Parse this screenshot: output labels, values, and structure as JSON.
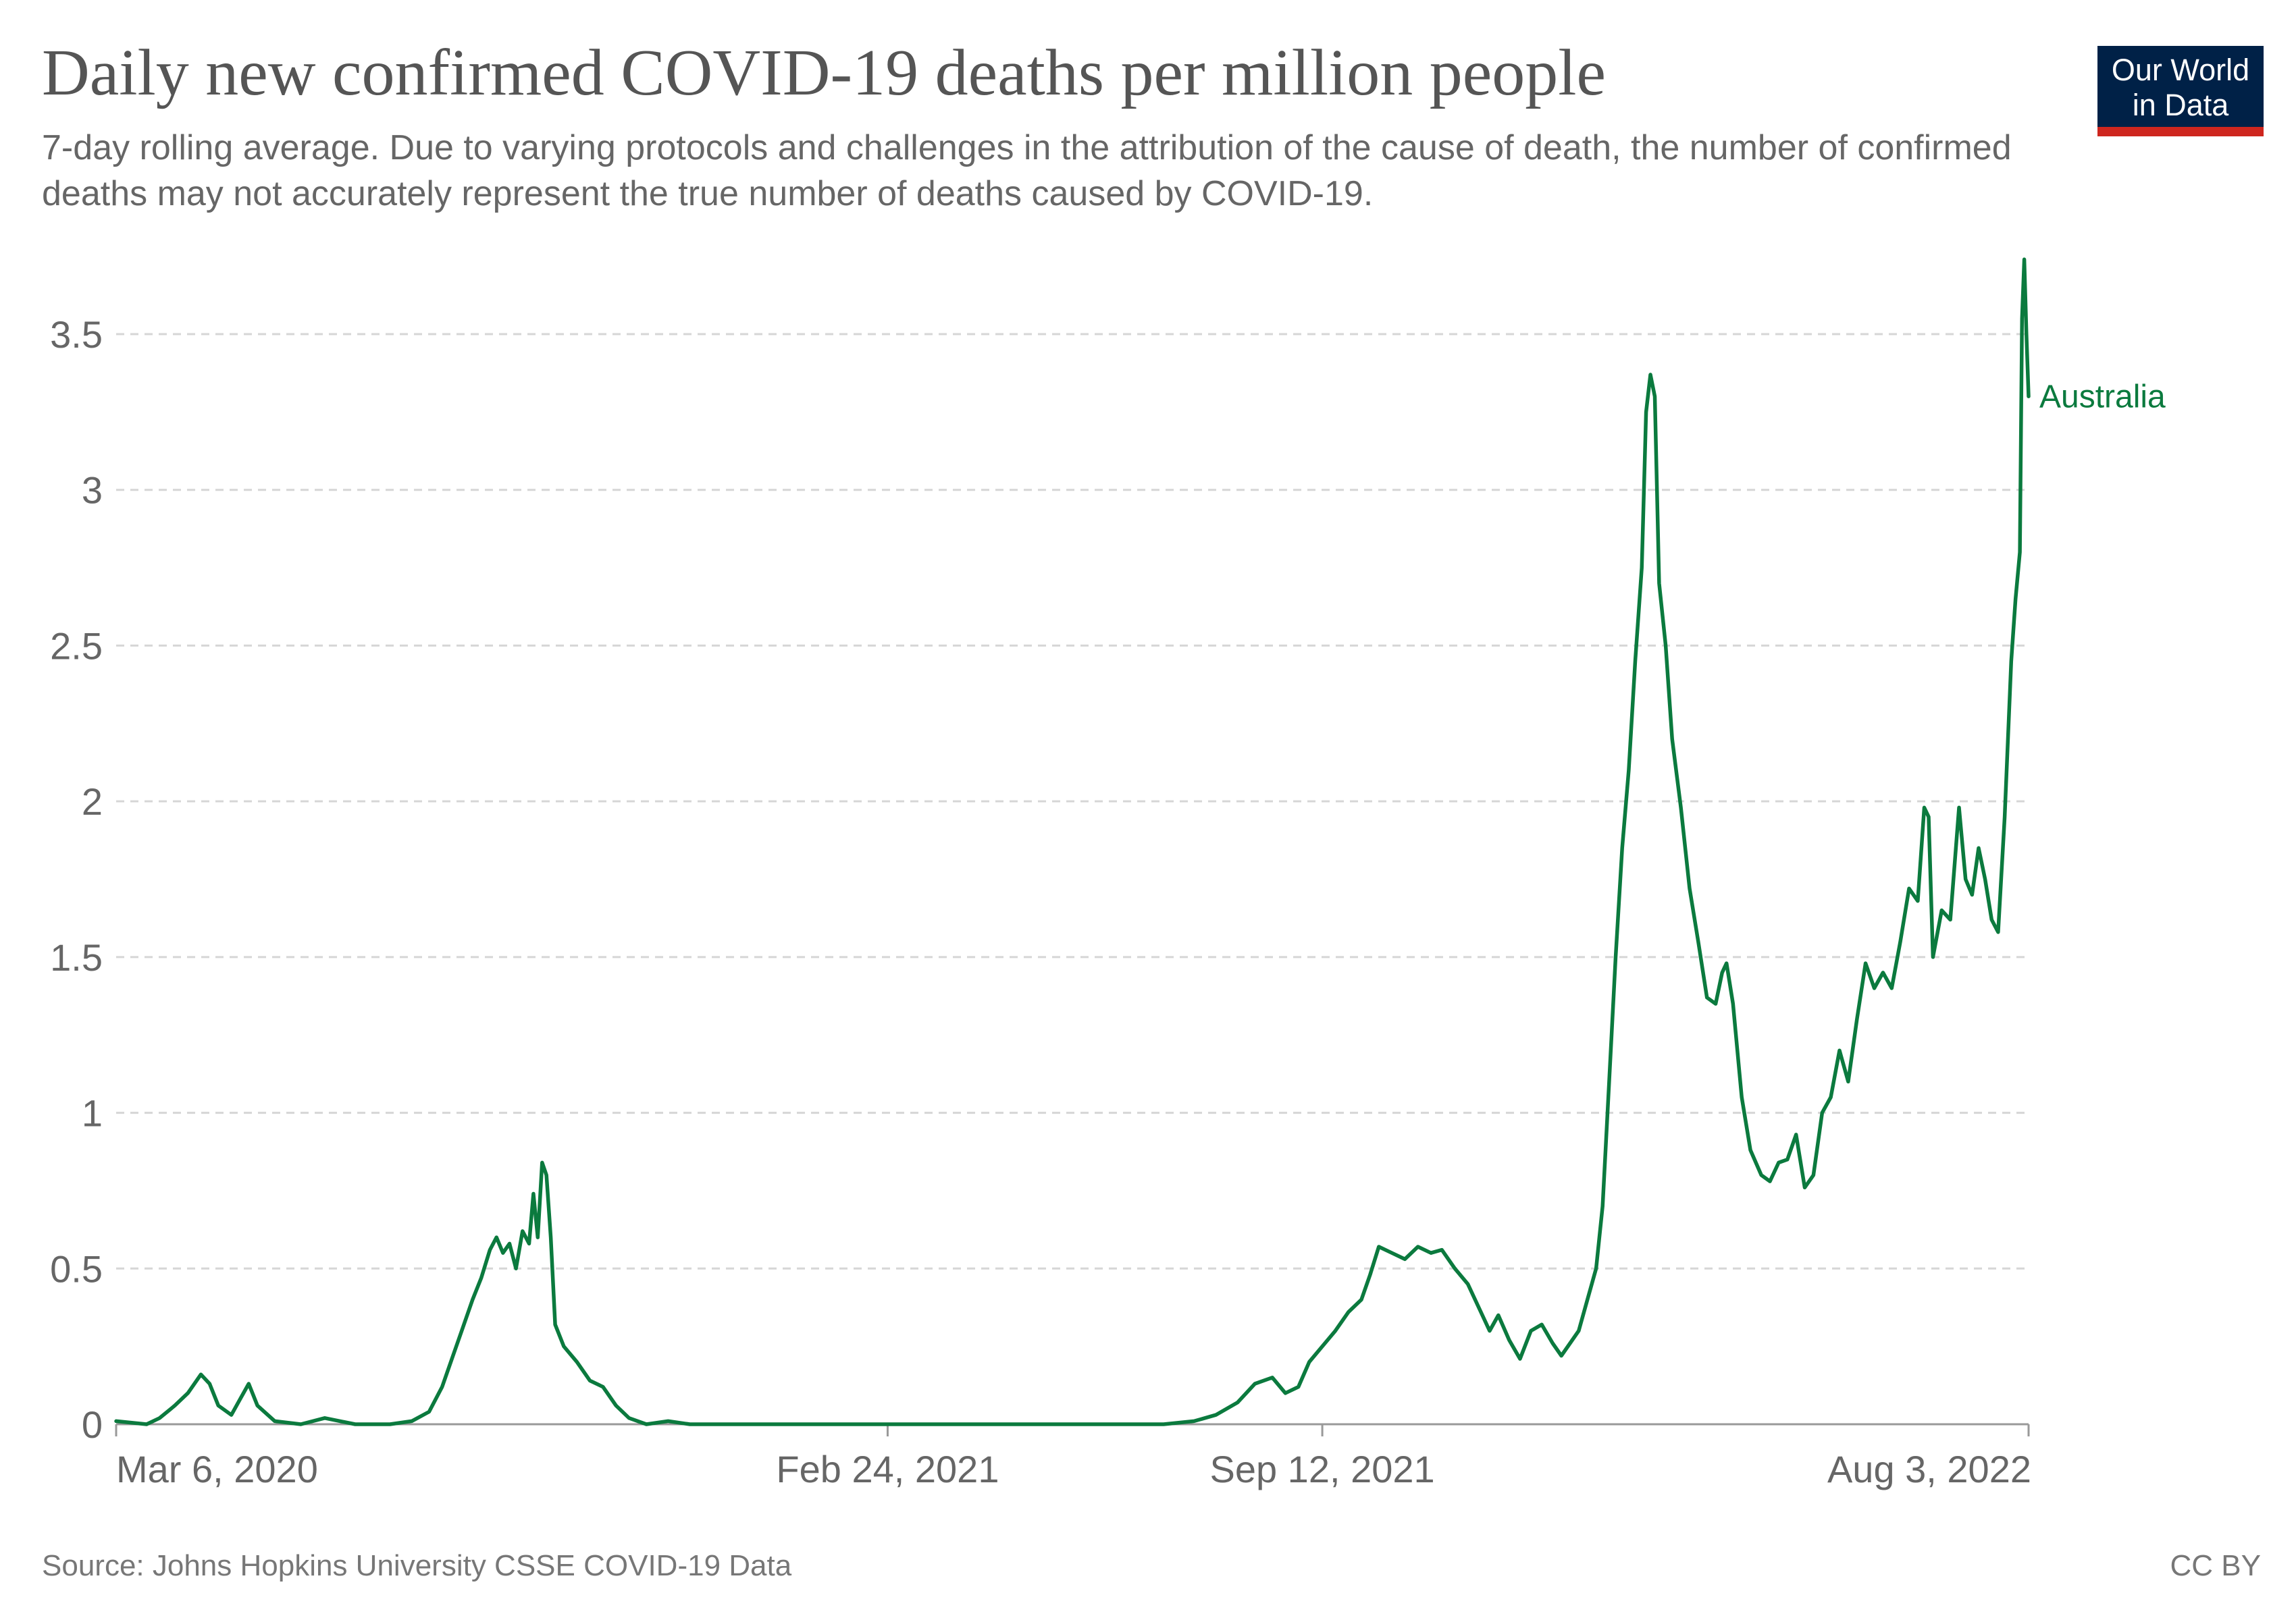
{
  "title": "Daily new confirmed COVID-19 deaths per million people",
  "subtitle": "7-day rolling average. Due to varying protocols and challenges in the attribution of the cause of death, the number of confirmed deaths may not accurately represent the true number of deaths caused by COVID-19.",
  "logo": {
    "text": "Our World\nin Data",
    "bg_color": "#002147",
    "accent_color": "#ce261e"
  },
  "source": "Source: Johns Hopkins University CSSE COVID-19 Data",
  "license": "CC BY",
  "chart_data": {
    "type": "line",
    "title": "Daily new confirmed COVID-19 deaths per million people",
    "xlabel": "",
    "ylabel": "",
    "ylim": [
      0,
      3.5
    ],
    "xlim": [
      "2020-03-06",
      "2022-08-03"
    ],
    "yticks": [
      "0",
      "0.5",
      "1",
      "1.5",
      "2",
      "2.5",
      "3",
      "3.5"
    ],
    "xticks": [
      {
        "date": "2020-03-06",
        "label": "Mar 6, 2020"
      },
      {
        "date": "2021-02-24",
        "label": "Feb 24, 2021"
      },
      {
        "date": "2021-09-12",
        "label": "Sep 12, 2021"
      },
      {
        "date": "2022-08-03",
        "label": "Aug 3, 2022"
      }
    ],
    "grid": "horizontal dashed",
    "series": [
      {
        "name": "Australia",
        "color": "#0b7a3e",
        "points": [
          [
            "2020-03-06",
            0.01
          ],
          [
            "2020-03-20",
            0.0
          ],
          [
            "2020-03-26",
            0.02
          ],
          [
            "2020-04-02",
            0.06
          ],
          [
            "2020-04-08",
            0.1
          ],
          [
            "2020-04-14",
            0.16
          ],
          [
            "2020-04-18",
            0.13
          ],
          [
            "2020-04-22",
            0.06
          ],
          [
            "2020-04-28",
            0.03
          ],
          [
            "2020-05-02",
            0.08
          ],
          [
            "2020-05-06",
            0.13
          ],
          [
            "2020-05-10",
            0.06
          ],
          [
            "2020-05-18",
            0.01
          ],
          [
            "2020-05-30",
            0.0
          ],
          [
            "2020-06-10",
            0.02
          ],
          [
            "2020-06-24",
            0.0
          ],
          [
            "2020-07-10",
            0.0
          ],
          [
            "2020-07-20",
            0.01
          ],
          [
            "2020-07-28",
            0.04
          ],
          [
            "2020-08-03",
            0.12
          ],
          [
            "2020-08-08",
            0.22
          ],
          [
            "2020-08-12",
            0.3
          ],
          [
            "2020-08-17",
            0.4
          ],
          [
            "2020-08-21",
            0.47
          ],
          [
            "2020-08-25",
            0.56
          ],
          [
            "2020-08-28",
            0.6
          ],
          [
            "2020-08-31",
            0.55
          ],
          [
            "2020-09-03",
            0.58
          ],
          [
            "2020-09-06",
            0.5
          ],
          [
            "2020-09-09",
            0.62
          ],
          [
            "2020-09-12",
            0.58
          ],
          [
            "2020-09-14",
            0.74
          ],
          [
            "2020-09-16",
            0.6
          ],
          [
            "2020-09-18",
            0.84
          ],
          [
            "2020-09-20",
            0.8
          ],
          [
            "2020-09-22",
            0.6
          ],
          [
            "2020-09-24",
            0.32
          ],
          [
            "2020-09-28",
            0.25
          ],
          [
            "2020-10-04",
            0.2
          ],
          [
            "2020-10-10",
            0.14
          ],
          [
            "2020-10-16",
            0.12
          ],
          [
            "2020-10-22",
            0.06
          ],
          [
            "2020-10-28",
            0.02
          ],
          [
            "2020-11-05",
            0.0
          ],
          [
            "2020-11-15",
            0.01
          ],
          [
            "2020-11-25",
            0.0
          ],
          [
            "2021-01-08",
            0.0
          ],
          [
            "2021-02-24",
            0.0
          ],
          [
            "2021-04-10",
            0.0
          ],
          [
            "2021-06-01",
            0.0
          ],
          [
            "2021-07-01",
            0.0
          ],
          [
            "2021-07-15",
            0.01
          ],
          [
            "2021-07-25",
            0.03
          ],
          [
            "2021-08-04",
            0.07
          ],
          [
            "2021-08-12",
            0.13
          ],
          [
            "2021-08-20",
            0.15
          ],
          [
            "2021-08-26",
            0.1
          ],
          [
            "2021-09-01",
            0.12
          ],
          [
            "2021-09-06",
            0.2
          ],
          [
            "2021-09-12",
            0.25
          ],
          [
            "2021-09-18",
            0.3
          ],
          [
            "2021-09-24",
            0.36
          ],
          [
            "2021-09-30",
            0.4
          ],
          [
            "2021-10-04",
            0.48
          ],
          [
            "2021-10-08",
            0.57
          ],
          [
            "2021-10-14",
            0.55
          ],
          [
            "2021-10-20",
            0.53
          ],
          [
            "2021-10-26",
            0.57
          ],
          [
            "2021-11-01",
            0.55
          ],
          [
            "2021-11-06",
            0.56
          ],
          [
            "2021-11-12",
            0.5
          ],
          [
            "2021-11-18",
            0.45
          ],
          [
            "2021-11-24",
            0.36
          ],
          [
            "2021-11-28",
            0.3
          ],
          [
            "2021-12-02",
            0.35
          ],
          [
            "2021-12-07",
            0.27
          ],
          [
            "2021-12-12",
            0.21
          ],
          [
            "2021-12-17",
            0.3
          ],
          [
            "2021-12-22",
            0.32
          ],
          [
            "2021-12-27",
            0.26
          ],
          [
            "2021-12-31",
            0.22
          ],
          [
            "2022-01-04",
            0.26
          ],
          [
            "2022-01-08",
            0.3
          ],
          [
            "2022-01-12",
            0.4
          ],
          [
            "2022-01-16",
            0.5
          ],
          [
            "2022-01-19",
            0.7
          ],
          [
            "2022-01-22",
            1.1
          ],
          [
            "2022-01-25",
            1.5
          ],
          [
            "2022-01-28",
            1.85
          ],
          [
            "2022-01-31",
            2.1
          ],
          [
            "2022-02-03",
            2.45
          ],
          [
            "2022-02-06",
            2.75
          ],
          [
            "2022-02-08",
            3.25
          ],
          [
            "2022-02-10",
            3.37
          ],
          [
            "2022-02-12",
            3.3
          ],
          [
            "2022-02-14",
            2.7
          ],
          [
            "2022-02-17",
            2.5
          ],
          [
            "2022-02-20",
            2.2
          ],
          [
            "2022-02-24",
            1.98
          ],
          [
            "2022-02-28",
            1.72
          ],
          [
            "2022-03-04",
            1.55
          ],
          [
            "2022-03-08",
            1.37
          ],
          [
            "2022-03-12",
            1.35
          ],
          [
            "2022-03-15",
            1.45
          ],
          [
            "2022-03-17",
            1.48
          ],
          [
            "2022-03-20",
            1.35
          ],
          [
            "2022-03-24",
            1.05
          ],
          [
            "2022-03-28",
            0.88
          ],
          [
            "2022-04-02",
            0.8
          ],
          [
            "2022-04-06",
            0.78
          ],
          [
            "2022-04-10",
            0.84
          ],
          [
            "2022-04-14",
            0.85
          ],
          [
            "2022-04-18",
            0.93
          ],
          [
            "2022-04-22",
            0.76
          ],
          [
            "2022-04-26",
            0.8
          ],
          [
            "2022-04-30",
            1.0
          ],
          [
            "2022-05-04",
            1.05
          ],
          [
            "2022-05-08",
            1.2
          ],
          [
            "2022-05-12",
            1.1
          ],
          [
            "2022-05-16",
            1.3
          ],
          [
            "2022-05-20",
            1.48
          ],
          [
            "2022-05-24",
            1.4
          ],
          [
            "2022-05-28",
            1.45
          ],
          [
            "2022-06-01",
            1.4
          ],
          [
            "2022-06-05",
            1.55
          ],
          [
            "2022-06-09",
            1.72
          ],
          [
            "2022-06-13",
            1.68
          ],
          [
            "2022-06-16",
            1.98
          ],
          [
            "2022-06-18",
            1.95
          ],
          [
            "2022-06-20",
            1.5
          ],
          [
            "2022-06-24",
            1.65
          ],
          [
            "2022-06-28",
            1.62
          ],
          [
            "2022-07-02",
            1.98
          ],
          [
            "2022-07-05",
            1.75
          ],
          [
            "2022-07-08",
            1.7
          ],
          [
            "2022-07-11",
            1.85
          ],
          [
            "2022-07-14",
            1.75
          ],
          [
            "2022-07-17",
            1.62
          ],
          [
            "2022-07-20",
            1.58
          ],
          [
            "2022-07-23",
            1.95
          ],
          [
            "2022-07-26",
            2.45
          ],
          [
            "2022-07-28",
            2.65
          ],
          [
            "2022-07-30",
            2.8
          ],
          [
            "2022-07-31",
            3.55
          ],
          [
            "2022-08-01",
            3.74
          ],
          [
            "2022-08-02",
            3.5
          ],
          [
            "2022-08-03",
            3.3
          ]
        ]
      }
    ]
  }
}
